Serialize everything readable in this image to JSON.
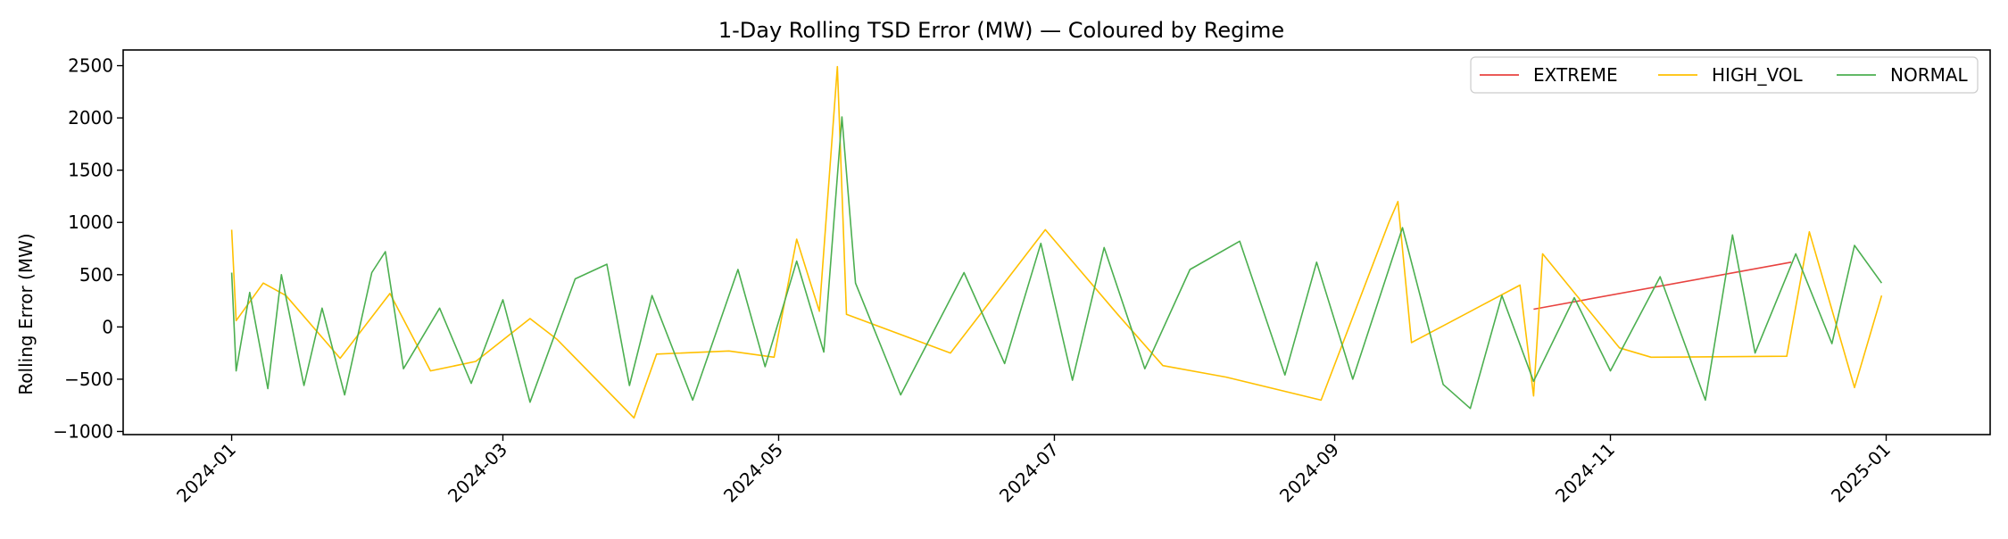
{
  "chart_data": {
    "type": "line",
    "title": "1-Day Rolling TSD Error (MW) — Coloured by Regime",
    "xlabel": "",
    "ylabel": "Rolling Error (MW)",
    "xlim": [
      "2023-12-08",
      "2025-01-24"
    ],
    "ylim": [
      -1030,
      2650
    ],
    "yticks": [
      -1000,
      -500,
      0,
      500,
      1000,
      1500,
      2000,
      2500
    ],
    "xticks": [
      "2024-01",
      "2024-03",
      "2024-05",
      "2024-07",
      "2024-09",
      "2024-11",
      "2025-01"
    ],
    "grid": false,
    "legend_position": "top-right",
    "series": [
      {
        "name": "EXTREME",
        "color": "#e8423f",
        "points": [
          [
            "2024-10-15",
            170
          ],
          [
            "2024-12-11",
            620
          ]
        ]
      },
      {
        "name": "HIGH_VOL",
        "color": "#ffc000",
        "points": [
          [
            "2024-01-01",
            930
          ],
          [
            "2024-01-02",
            60
          ],
          [
            "2024-01-08",
            420
          ],
          [
            "2024-01-13",
            300
          ],
          [
            "2024-01-25",
            -300
          ],
          [
            "2024-02-05",
            320
          ],
          [
            "2024-02-14",
            -420
          ],
          [
            "2024-02-24",
            -330
          ],
          [
            "2024-03-07",
            80
          ],
          [
            "2024-03-13",
            -120
          ],
          [
            "2024-03-30",
            -870
          ],
          [
            "2024-04-04",
            -260
          ],
          [
            "2024-04-20",
            -230
          ],
          [
            "2024-04-30",
            -290
          ],
          [
            "2024-05-05",
            840
          ],
          [
            "2024-05-10",
            150
          ],
          [
            "2024-05-14",
            2490
          ],
          [
            "2024-05-16",
            120
          ],
          [
            "2024-06-08",
            -250
          ],
          [
            "2024-06-29",
            930
          ],
          [
            "2024-07-15",
            120
          ],
          [
            "2024-07-25",
            -370
          ],
          [
            "2024-08-08",
            -480
          ],
          [
            "2024-08-29",
            -700
          ],
          [
            "2024-09-13",
            1000
          ],
          [
            "2024-09-15",
            1200
          ],
          [
            "2024-09-18",
            -150
          ],
          [
            "2024-10-12",
            400
          ],
          [
            "2024-10-15",
            -660
          ],
          [
            "2024-10-17",
            700
          ],
          [
            "2024-11-03",
            -200
          ],
          [
            "2024-11-10",
            -290
          ],
          [
            "2024-12-10",
            -280
          ],
          [
            "2024-12-15",
            910
          ],
          [
            "2024-12-25",
            -580
          ],
          [
            "2024-12-31",
            300
          ]
        ]
      },
      {
        "name": "NORMAL",
        "color": "#4caf50",
        "points": [
          [
            "2024-01-01",
            520
          ],
          [
            "2024-01-02",
            -420
          ],
          [
            "2024-01-05",
            330
          ],
          [
            "2024-01-09",
            -590
          ],
          [
            "2024-01-12",
            500
          ],
          [
            "2024-01-17",
            -560
          ],
          [
            "2024-01-21",
            180
          ],
          [
            "2024-01-26",
            -650
          ],
          [
            "2024-02-01",
            520
          ],
          [
            "2024-02-04",
            720
          ],
          [
            "2024-02-08",
            -400
          ],
          [
            "2024-02-16",
            180
          ],
          [
            "2024-02-23",
            -540
          ],
          [
            "2024-03-01",
            260
          ],
          [
            "2024-03-07",
            -720
          ],
          [
            "2024-03-17",
            460
          ],
          [
            "2024-03-24",
            600
          ],
          [
            "2024-03-29",
            -560
          ],
          [
            "2024-04-03",
            300
          ],
          [
            "2024-04-12",
            -700
          ],
          [
            "2024-04-22",
            550
          ],
          [
            "2024-04-28",
            -380
          ],
          [
            "2024-05-05",
            630
          ],
          [
            "2024-05-11",
            -240
          ],
          [
            "2024-05-15",
            2010
          ],
          [
            "2024-05-18",
            420
          ],
          [
            "2024-05-28",
            -650
          ],
          [
            "2024-06-11",
            520
          ],
          [
            "2024-06-20",
            -350
          ],
          [
            "2024-06-28",
            800
          ],
          [
            "2024-07-05",
            -510
          ],
          [
            "2024-07-12",
            760
          ],
          [
            "2024-07-21",
            -400
          ],
          [
            "2024-07-31",
            550
          ],
          [
            "2024-08-11",
            820
          ],
          [
            "2024-08-21",
            -460
          ],
          [
            "2024-08-28",
            620
          ],
          [
            "2024-09-05",
            -500
          ],
          [
            "2024-09-16",
            950
          ],
          [
            "2024-09-25",
            -550
          ],
          [
            "2024-10-01",
            -780
          ],
          [
            "2024-10-08",
            300
          ],
          [
            "2024-10-15",
            -520
          ],
          [
            "2024-10-24",
            280
          ],
          [
            "2024-11-01",
            -420
          ],
          [
            "2024-11-12",
            480
          ],
          [
            "2024-11-22",
            -700
          ],
          [
            "2024-11-28",
            880
          ],
          [
            "2024-12-03",
            -250
          ],
          [
            "2024-12-12",
            700
          ],
          [
            "2024-12-20",
            -160
          ],
          [
            "2024-12-25",
            780
          ],
          [
            "2024-12-31",
            420
          ]
        ]
      }
    ]
  }
}
